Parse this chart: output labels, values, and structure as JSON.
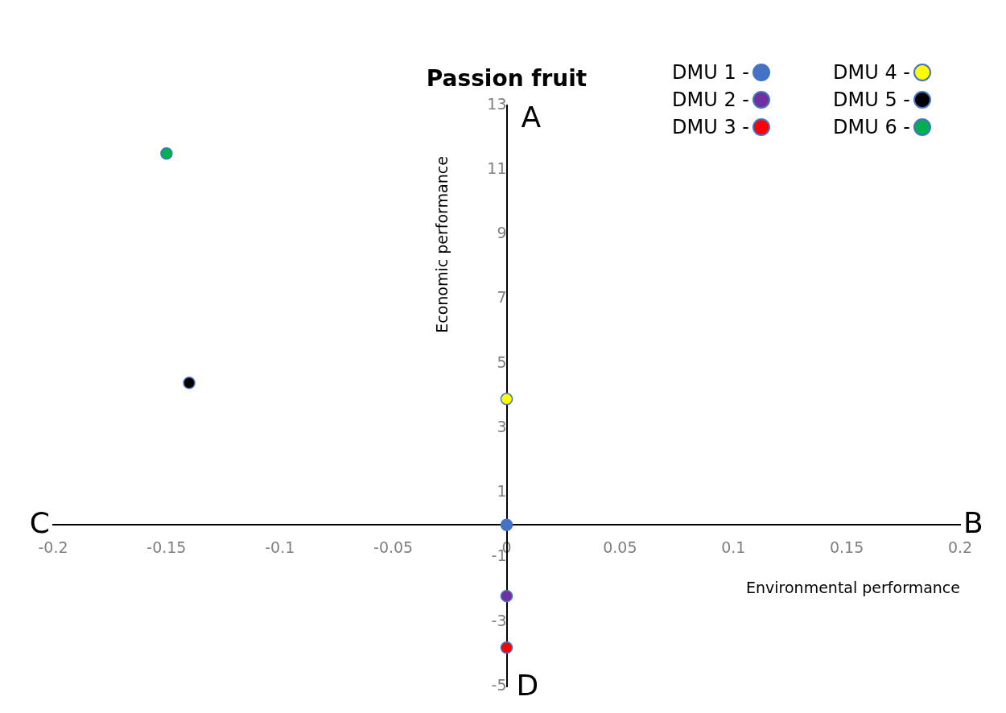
{
  "chart_data": {
    "type": "scatter",
    "title": "Passion fruit",
    "xlabel": "Environmental performance",
    "ylabel": "Economic performance",
    "xlim": [
      -0.2,
      0.2
    ],
    "xticks": [
      -0.2,
      -0.15,
      -0.1,
      -0.05,
      0,
      0.05,
      0.1,
      0.15,
      0.2
    ],
    "ylim": [
      -5,
      13
    ],
    "yticks": [
      -5,
      -3,
      -1,
      1,
      3,
      5,
      7,
      9,
      11,
      13
    ],
    "grid": false,
    "legend": "top right",
    "marker": "circle",
    "series": [
      {
        "name": "DMU 1 -",
        "color": "#4472c4",
        "x": [
          0
        ],
        "values": [
          0
        ]
      },
      {
        "name": "DMU 2 -",
        "color": "#7030a0",
        "x": [
          0
        ],
        "values": [
          -2.2
        ]
      },
      {
        "name": "DMU 3 -",
        "color": "#ff0000",
        "x": [
          0
        ],
        "values": [
          -3.8
        ]
      },
      {
        "name": "DMU 4 -",
        "color": "#ffff00",
        "x": [
          0
        ],
        "values": [
          3.9
        ]
      },
      {
        "name": "DMU 5 -",
        "color": "#000000",
        "x": [
          -0.14
        ],
        "values": [
          4.4
        ]
      },
      {
        "name": "DMU 6 -",
        "color": "#00b050",
        "x": [
          -0.15
        ],
        "values": [
          11.5
        ]
      }
    ],
    "annotations": [
      "A",
      "B",
      "C",
      "D"
    ]
  }
}
